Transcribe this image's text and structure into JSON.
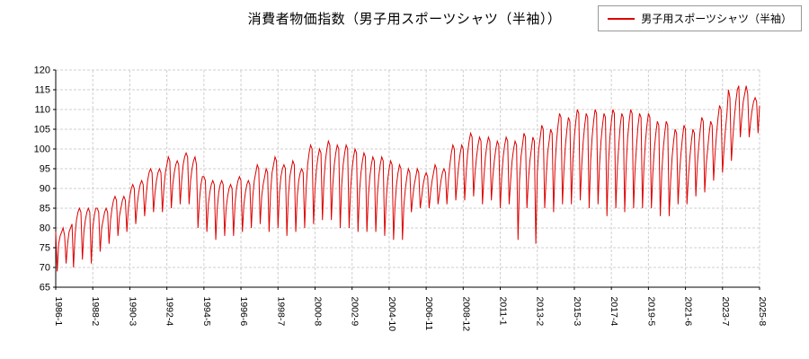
{
  "chart_data": {
    "type": "line",
    "title": "消費者物価指数（男子用スポーツシャツ（半袖））",
    "series_name": "男子用スポーツシャツ（半袖）",
    "color": "#dd0000",
    "grid": true,
    "legend_position": "top-right",
    "ylim": [
      65,
      120
    ],
    "ytick_step": 5,
    "x_start": "1986-1",
    "x_end": "2025-8",
    "x_frequency": "monthly",
    "tick_interval_months": 25,
    "x_tick_labels": [
      "1986-1",
      "1988-2",
      "1990-3",
      "1992-4",
      "1994-5",
      "1996-6",
      "1998-7",
      "2000-8",
      "2002-9",
      "2004-10",
      "2006-11",
      "2008-12",
      "2011-1",
      "2013-2",
      "2015-3",
      "2017-4",
      "2019-5",
      "2021-6",
      "2023-7",
      "2025-8"
    ],
    "values": [
      79,
      69,
      76,
      78,
      79,
      80,
      78,
      71,
      76,
      79,
      80,
      81,
      70,
      78,
      82,
      84,
      85,
      84,
      72,
      79,
      82,
      84,
      85,
      84,
      71,
      80,
      83,
      85,
      85,
      84,
      74,
      80,
      82,
      84,
      85,
      84,
      76,
      82,
      85,
      87,
      88,
      87,
      78,
      83,
      85,
      87,
      88,
      87,
      79,
      85,
      88,
      90,
      91,
      90,
      81,
      86,
      89,
      91,
      92,
      91,
      83,
      88,
      92,
      94,
      95,
      94,
      84,
      89,
      92,
      94,
      95,
      94,
      84,
      90,
      94,
      96,
      98,
      97,
      85,
      91,
      94,
      96,
      97,
      96,
      86,
      92,
      96,
      98,
      99,
      98,
      86,
      92,
      95,
      97,
      98,
      96,
      80,
      87,
      91,
      93,
      93,
      92,
      79,
      86,
      89,
      91,
      92,
      91,
      77,
      85,
      89,
      91,
      92,
      91,
      78,
      85,
      88,
      90,
      91,
      90,
      78,
      86,
      90,
      92,
      93,
      92,
      79,
      86,
      89,
      91,
      92,
      91,
      80,
      88,
      92,
      94,
      96,
      95,
      81,
      88,
      91,
      93,
      95,
      94,
      79,
      89,
      94,
      96,
      98,
      97,
      80,
      89,
      93,
      95,
      96,
      95,
      78,
      88,
      93,
      95,
      97,
      96,
      79,
      88,
      92,
      94,
      95,
      94,
      80,
      90,
      96,
      99,
      101,
      100,
      81,
      90,
      95,
      98,
      100,
      99,
      82,
      92,
      97,
      100,
      102,
      101,
      82,
      91,
      96,
      99,
      101,
      100,
      80,
      91,
      96,
      99,
      101,
      100,
      80,
      90,
      95,
      98,
      100,
      99,
      79,
      89,
      94,
      97,
      99,
      98,
      79,
      88,
      93,
      96,
      98,
      97,
      79,
      88,
      93,
      96,
      98,
      97,
      78,
      87,
      92,
      95,
      97,
      96,
      77,
      86,
      91,
      94,
      96,
      95,
      77,
      86,
      90,
      93,
      95,
      94,
      84,
      88,
      91,
      93,
      95,
      94,
      85,
      88,
      91,
      93,
      94,
      93,
      85,
      89,
      92,
      94,
      96,
      95,
      86,
      89,
      92,
      94,
      95,
      94,
      86,
      92,
      96,
      99,
      101,
      100,
      87,
      92,
      96,
      99,
      101,
      100,
      87,
      94,
      99,
      102,
      104,
      103,
      88,
      94,
      98,
      101,
      103,
      102,
      86,
      93,
      98,
      101,
      103,
      102,
      87,
      93,
      97,
      100,
      102,
      101,
      85,
      93,
      98,
      101,
      103,
      102,
      86,
      92,
      97,
      100,
      102,
      101,
      77,
      92,
      98,
      101,
      104,
      103,
      85,
      92,
      97,
      100,
      103,
      102,
      76,
      94,
      100,
      103,
      106,
      105,
      85,
      93,
      99,
      102,
      105,
      104,
      84,
      96,
      102,
      106,
      109,
      108,
      86,
      95,
      101,
      105,
      108,
      107,
      86,
      97,
      103,
      107,
      110,
      109,
      87,
      96,
      102,
      106,
      109,
      108,
      85,
      97,
      103,
      107,
      110,
      109,
      86,
      96,
      102,
      106,
      109,
      108,
      83,
      96,
      103,
      107,
      110,
      109,
      85,
      95,
      101,
      106,
      109,
      108,
      84,
      96,
      103,
      107,
      110,
      109,
      85,
      95,
      101,
      106,
      109,
      108,
      85,
      96,
      102,
      106,
      109,
      108,
      85,
      94,
      100,
      104,
      107,
      106,
      83,
      94,
      100,
      104,
      107,
      106,
      83,
      92,
      98,
      102,
      105,
      104,
      86,
      94,
      99,
      103,
      106,
      105,
      86,
      93,
      98,
      102,
      105,
      104,
      88,
      96,
      101,
      105,
      108,
      107,
      89,
      96,
      100,
      104,
      107,
      106,
      92,
      99,
      104,
      108,
      111,
      110,
      94,
      100,
      105,
      109,
      115,
      113,
      97,
      103,
      108,
      112,
      115,
      116,
      103,
      108,
      112,
      114,
      116,
      114,
      103,
      107,
      110,
      112,
      113,
      112,
      104,
      111
    ]
  }
}
